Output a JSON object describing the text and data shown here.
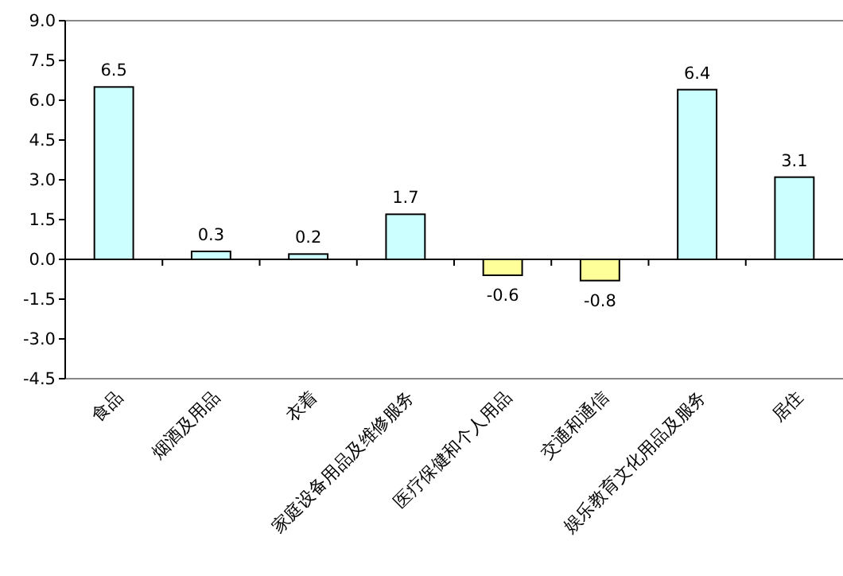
{
  "chart_data": {
    "type": "bar",
    "categories": [
      "食品",
      "烟酒及用品",
      "衣着",
      "家庭设备用品及维修服务",
      "医疗保健和个人用品",
      "交通和通信",
      "娱乐教育文化用品及服务",
      "居住"
    ],
    "values": [
      6.5,
      0.3,
      0.2,
      1.7,
      -0.6,
      -0.8,
      6.4,
      3.1
    ],
    "colors": [
      "#ccffff",
      "#ccffff",
      "#ccffff",
      "#ccffff",
      "#ffff99",
      "#ffff99",
      "#ccffff",
      "#ccffff"
    ],
    "ylim": [
      -4.5,
      9
    ],
    "yticks": [
      {
        "value": -4.5,
        "label": "-4.5"
      },
      {
        "value": -3,
        "label": "-3.0"
      },
      {
        "value": -1.5,
        "label": "-1.5"
      },
      {
        "value": 0,
        "label": "0.0"
      },
      {
        "value": 1.5,
        "label": "1.5"
      },
      {
        "value": 3,
        "label": "3.0"
      },
      {
        "value": 4.5,
        "label": "4.5"
      },
      {
        "value": 6,
        "label": "6.0"
      },
      {
        "value": 7.5,
        "label": "7.5"
      },
      {
        "value": 9,
        "label": "9.0"
      }
    ],
    "data_labels": true
  }
}
